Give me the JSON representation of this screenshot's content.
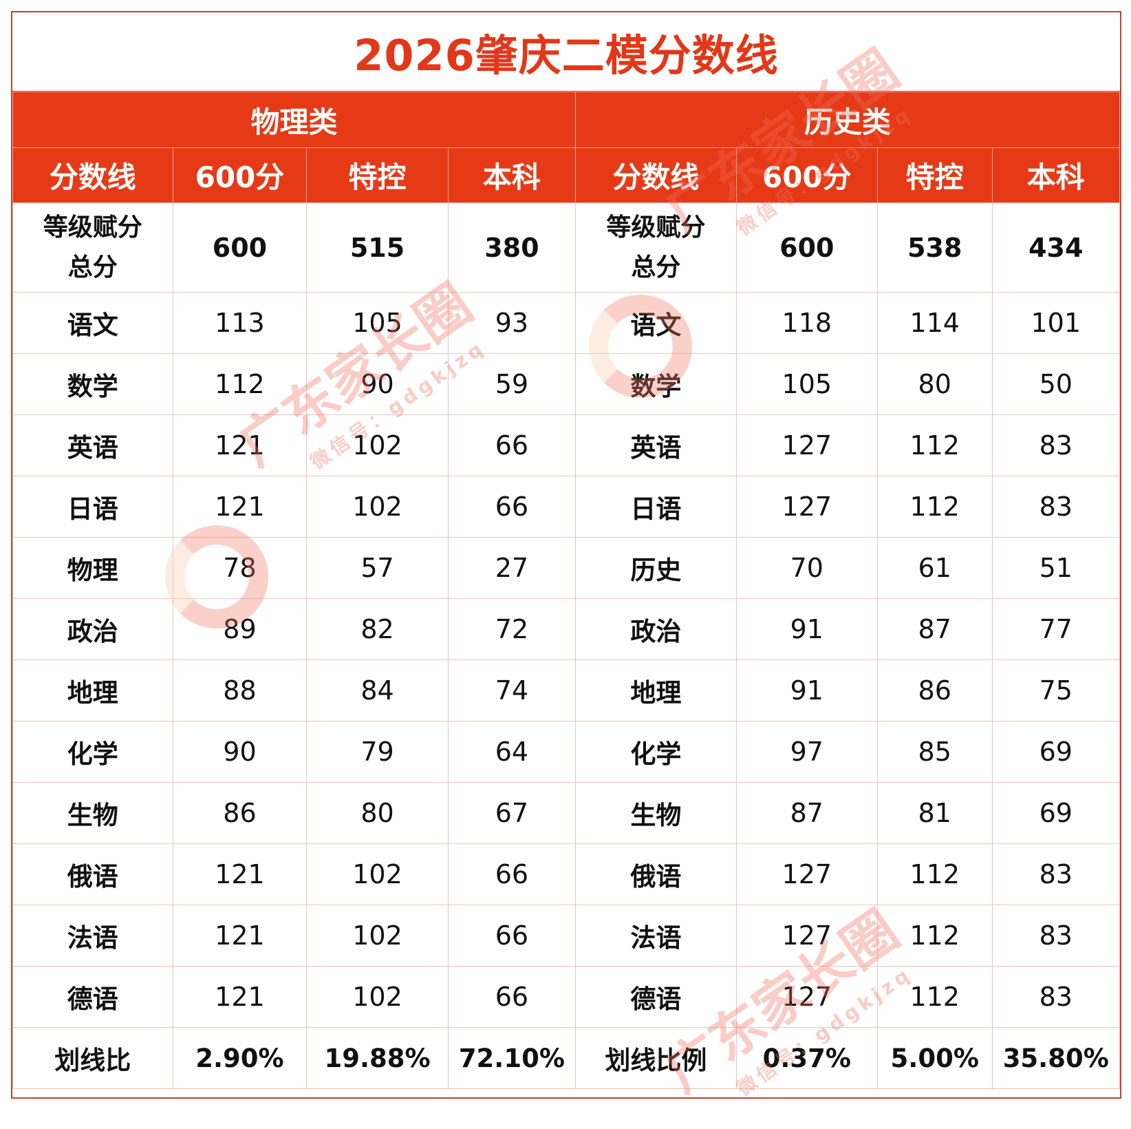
{
  "title": "2026肇庆二模分数线",
  "groups": [
    {
      "label": "物理类"
    },
    {
      "label": "历史类"
    }
  ],
  "column_headers": {
    "physics": [
      "分数线",
      "600分",
      "特控",
      "本科"
    ],
    "history": [
      "分数线",
      "600分",
      "特控",
      "本科"
    ]
  },
  "total_row": {
    "physics": {
      "label": "等级赋分总分",
      "label_line1": "等级赋分",
      "label_line2": "总分",
      "values": [
        "600",
        "515",
        "380"
      ]
    },
    "history": {
      "label": "等级赋分总分",
      "label_line1": "等级赋分",
      "label_line2": "总分",
      "values": [
        "600",
        "538",
        "434"
      ]
    }
  },
  "rows": [
    {
      "physics": {
        "subject": "语文",
        "values": [
          "113",
          "105",
          "93"
        ]
      },
      "history": {
        "subject": "语文",
        "values": [
          "118",
          "114",
          "101"
        ]
      }
    },
    {
      "physics": {
        "subject": "数学",
        "values": [
          "112",
          "90",
          "59"
        ]
      },
      "history": {
        "subject": "数学",
        "values": [
          "105",
          "80",
          "50"
        ]
      }
    },
    {
      "physics": {
        "subject": "英语",
        "values": [
          "121",
          "102",
          "66"
        ]
      },
      "history": {
        "subject": "英语",
        "values": [
          "127",
          "112",
          "83"
        ]
      }
    },
    {
      "physics": {
        "subject": "日语",
        "values": [
          "121",
          "102",
          "66"
        ]
      },
      "history": {
        "subject": "日语",
        "values": [
          "127",
          "112",
          "83"
        ]
      }
    },
    {
      "physics": {
        "subject": "物理",
        "values": [
          "78",
          "57",
          "27"
        ]
      },
      "history": {
        "subject": "历史",
        "values": [
          "70",
          "61",
          "51"
        ]
      }
    },
    {
      "physics": {
        "subject": "政治",
        "values": [
          "89",
          "82",
          "72"
        ]
      },
      "history": {
        "subject": "政治",
        "values": [
          "91",
          "87",
          "77"
        ]
      }
    },
    {
      "physics": {
        "subject": "地理",
        "values": [
          "88",
          "84",
          "74"
        ]
      },
      "history": {
        "subject": "地理",
        "values": [
          "91",
          "86",
          "75"
        ]
      }
    },
    {
      "physics": {
        "subject": "化学",
        "values": [
          "90",
          "79",
          "64"
        ]
      },
      "history": {
        "subject": "化学",
        "values": [
          "97",
          "85",
          "69"
        ]
      }
    },
    {
      "physics": {
        "subject": "生物",
        "values": [
          "86",
          "80",
          "67"
        ]
      },
      "history": {
        "subject": "生物",
        "values": [
          "87",
          "81",
          "69"
        ]
      }
    },
    {
      "physics": {
        "subject": "俄语",
        "values": [
          "121",
          "102",
          "66"
        ]
      },
      "history": {
        "subject": "俄语",
        "values": [
          "127",
          "112",
          "83"
        ]
      }
    },
    {
      "physics": {
        "subject": "法语",
        "values": [
          "121",
          "102",
          "66"
        ]
      },
      "history": {
        "subject": "法语",
        "values": [
          "127",
          "112",
          "83"
        ]
      }
    },
    {
      "physics": {
        "subject": "德语",
        "values": [
          "121",
          "102",
          "66"
        ]
      },
      "history": {
        "subject": "德语",
        "values": [
          "127",
          "112",
          "83"
        ]
      }
    }
  ],
  "ratio_row": {
    "physics": {
      "label": "划线比",
      "values": [
        "2.90%",
        "19.88%",
        "72.10%"
      ]
    },
    "history": {
      "label": "划线比例",
      "values": [
        "0.37%",
        "5.00%",
        "35.80%"
      ]
    }
  },
  "watermark": {
    "brand": "广东家长圈",
    "wechat": "微信号：gdgkjzq"
  },
  "colors": {
    "accent": "#e63a17",
    "title": "#e3371a",
    "grid": "#e6c5b8",
    "border": "#c0442a"
  }
}
